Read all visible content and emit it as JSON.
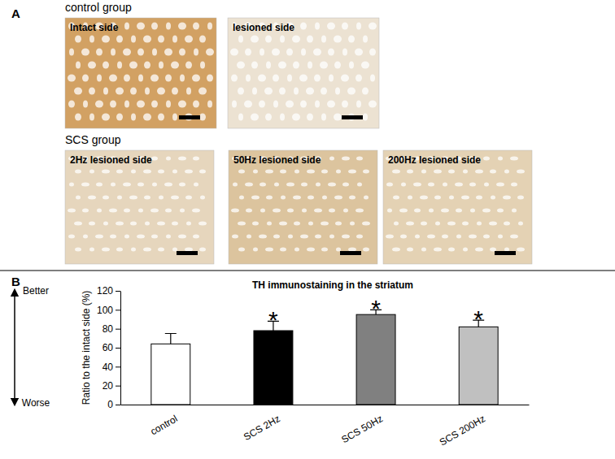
{
  "panel_a": {
    "label": "A",
    "groups": [
      {
        "title": "control group",
        "images": [
          {
            "label": "Intact side",
            "color": "#d2a163"
          },
          {
            "label": "lesioned side",
            "color": "#ece2d2"
          }
        ]
      },
      {
        "title": "SCS group",
        "images": [
          {
            "label": "2Hz lesioned side",
            "color": "#e6d6bd"
          },
          {
            "label": "50Hz lesioned side",
            "color": "#dcc49e"
          },
          {
            "label": "200Hz lesioned side",
            "color": "#e4d2b4"
          }
        ]
      }
    ]
  },
  "chart_data": {
    "type": "bar",
    "panel_label": "B",
    "title": "TH immunostaining in the striatum",
    "y_label": "Ratio to the intact side (%)",
    "y_direction_labels": [
      "Better",
      "Worse"
    ],
    "categories": [
      "control",
      "SCS 2Hz",
      "SCS 50Hz",
      "SCS 200Hz"
    ],
    "values": [
      64,
      78,
      95,
      82
    ],
    "errors": [
      11,
      10,
      5,
      7
    ],
    "colors": [
      "#ffffff",
      "#000000",
      "#808080",
      "#c0c0c0"
    ],
    "annotations": [
      {
        "category_index": 1,
        "text": "*"
      },
      {
        "category_index": 2,
        "text": "*"
      },
      {
        "category_index": 3,
        "text": "*"
      }
    ],
    "ylim": [
      0,
      120
    ],
    "yticks": [
      0,
      20,
      40,
      60,
      80,
      100,
      120
    ],
    "grid": false
  }
}
